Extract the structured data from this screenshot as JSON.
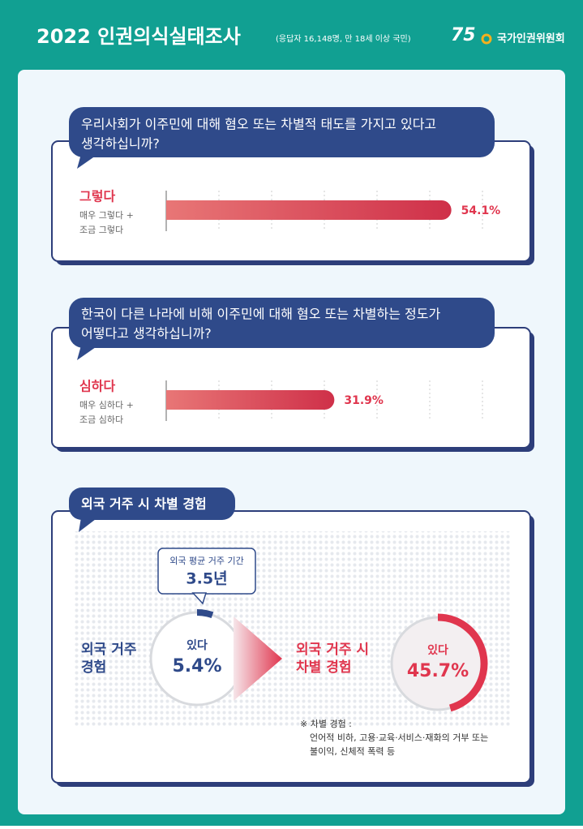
{
  "header": {
    "title": "2022 인권의식실태조사",
    "subtitle": "(응답자 16,148명, 만 18세 이상 국민)",
    "logo_number": "75",
    "logo_org": "국가인권위원회"
  },
  "questions": [
    {
      "question": [
        "우리사회가 이주민에 대해 혐오 또는 차별적 태도를 가지고 있다고",
        "생각하십니까?"
      ],
      "answer": "그렇다",
      "answer_detail": [
        "매우 그렇다 +",
        "조금 그렇다"
      ],
      "value": 54.1,
      "value_label": "54.1%"
    },
    {
      "question": [
        "한국이 다른 나라에 비해 이주민에 대해 혐오 또는 차별하는 정도가",
        "어떻다고 생각하십니까?"
      ],
      "answer": "심하다",
      "answer_detail": [
        "매우 심하다 +",
        "조금 심하다"
      ],
      "value": 31.9,
      "value_label": "31.9%"
    }
  ],
  "bar_scale": {
    "xlim": [
      0,
      100
    ]
  },
  "abroad": {
    "title": "외국 거주 시 차별 경험",
    "stay": {
      "label": "외국 평균 거주 기간",
      "value_text": "3.5년"
    },
    "experience": {
      "label": [
        "외국 거주",
        "경험"
      ],
      "answer": "있다",
      "value": 5.4,
      "value_label": "5.4%"
    },
    "discrimination": {
      "label": [
        "외국 거주 시",
        "차별 경험"
      ],
      "answer": "있다",
      "value": 45.7,
      "value_label": "45.7%"
    },
    "note": [
      "※ 차별 경험 :",
      "언어적 비하, 고용·교육·서비스·재화의 거부 또는",
      "불이익, 신체적 폭력 등"
    ]
  }
}
